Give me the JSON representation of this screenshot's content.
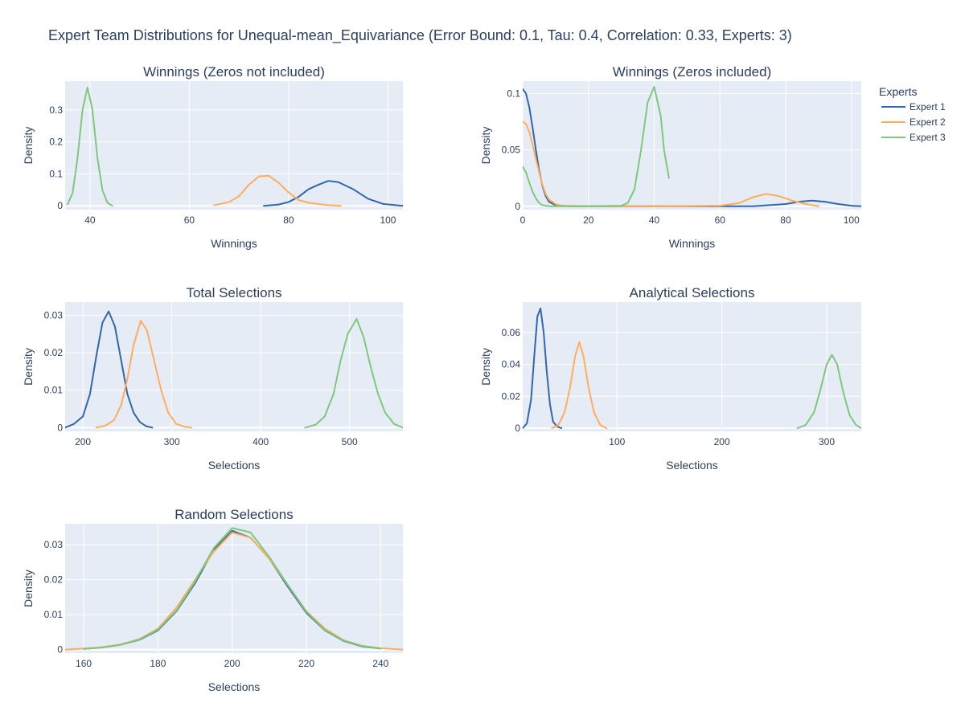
{
  "figure": {
    "title": "Expert Team Distributions for Unequal-mean_Equivariance (Error Bound: 0.1, Tau: 0.4, Correlation: 0.33, Experts: 3)",
    "legend_title": "Experts",
    "series": [
      {
        "name": "Expert 1",
        "color": "#3366aa"
      },
      {
        "name": "Expert 2",
        "color": "#ffad5a"
      },
      {
        "name": "Expert 3",
        "color": "#7ec87e"
      }
    ],
    "plot_bg": "#e5ecf6",
    "grid_color": "#ffffff",
    "text_color": "#2a3f5f"
  },
  "chart_data": [
    {
      "type": "line",
      "title": "Winnings (Zeros not included)",
      "xlabel": "Winnings",
      "ylabel": "Density",
      "xlim": [
        35,
        103
      ],
      "ylim": [
        -0.012,
        0.39
      ],
      "xticks": [
        40,
        60,
        80,
        100
      ],
      "xtick_labels": [
        "40",
        "60",
        "80",
        "100"
      ],
      "yticks": [
        0,
        0.1,
        0.2,
        0.3
      ],
      "ytick_labels": [
        "0",
        "0.1",
        "0.2",
        "0.3"
      ],
      "series": [
        {
          "name": "Expert 1",
          "x": [
            75,
            78,
            80,
            82,
            84,
            86,
            88,
            90,
            93,
            96,
            99,
            103
          ],
          "y": [
            0.0,
            0.004,
            0.012,
            0.028,
            0.052,
            0.066,
            0.078,
            0.074,
            0.052,
            0.022,
            0.006,
            0.0
          ]
        },
        {
          "name": "Expert 2",
          "x": [
            65,
            68,
            70,
            72,
            74,
            76,
            78,
            80,
            82,
            84,
            86,
            88,
            90.5
          ],
          "y": [
            0.002,
            0.012,
            0.03,
            0.066,
            0.092,
            0.094,
            0.072,
            0.042,
            0.018,
            0.01,
            0.006,
            0.002,
            0.0
          ]
        },
        {
          "name": "Expert 3",
          "x": [
            35.5,
            36.5,
            37.5,
            38.5,
            39.5,
            40.5,
            41.5,
            42.5,
            43.5,
            44.5
          ],
          "y": [
            0.005,
            0.04,
            0.15,
            0.3,
            0.37,
            0.3,
            0.15,
            0.05,
            0.01,
            0.0
          ]
        }
      ]
    },
    {
      "type": "line",
      "title": "Winnings (Zeros included)",
      "xlabel": "Winnings",
      "ylabel": "Density",
      "xlim": [
        0,
        103
      ],
      "ylim": [
        -0.003,
        0.111
      ],
      "xticks": [
        0,
        20,
        40,
        60,
        80,
        100
      ],
      "xtick_labels": [
        "0",
        "20",
        "40",
        "60",
        "80",
        "100"
      ],
      "yticks": [
        0,
        0.05,
        0.1
      ],
      "ytick_labels": [
        "0",
        "0.05",
        "0.1"
      ],
      "series": [
        {
          "name": "Expert 1",
          "x": [
            0,
            1,
            2,
            3,
            4,
            5,
            6,
            7,
            8,
            10,
            14,
            20,
            40,
            70,
            80,
            84,
            88,
            92,
            96,
            100,
            103
          ],
          "y": [
            0.104,
            0.1,
            0.088,
            0.07,
            0.05,
            0.032,
            0.018,
            0.009,
            0.004,
            0.001,
            0.0,
            0.0,
            0.0,
            0.0,
            0.002,
            0.004,
            0.005,
            0.004,
            0.002,
            0.0005,
            0.0
          ]
        },
        {
          "name": "Expert 2",
          "x": [
            0,
            1,
            2,
            3,
            4,
            5,
            6,
            7,
            8,
            10,
            12,
            20,
            40,
            60,
            66,
            70,
            74,
            78,
            82,
            86,
            90
          ],
          "y": [
            0.075,
            0.073,
            0.066,
            0.055,
            0.042,
            0.03,
            0.019,
            0.011,
            0.006,
            0.002,
            0.0005,
            0.0,
            0.0,
            0.0005,
            0.003,
            0.008,
            0.011,
            0.009,
            0.005,
            0.002,
            0.0
          ]
        },
        {
          "name": "Expert 3",
          "x": [
            0,
            1,
            2,
            3,
            4,
            5,
            6,
            8,
            10,
            20,
            30,
            32,
            34,
            36,
            38,
            40,
            42,
            43,
            44.5
          ],
          "y": [
            0.035,
            0.03,
            0.021,
            0.013,
            0.007,
            0.003,
            0.001,
            0.0,
            0.0,
            0.0,
            0.0005,
            0.003,
            0.015,
            0.05,
            0.092,
            0.106,
            0.08,
            0.05,
            0.025
          ]
        }
      ]
    },
    {
      "type": "line",
      "title": "Total Selections",
      "xlabel": "Selections",
      "ylabel": "Density",
      "xlim": [
        180,
        560
      ],
      "ylim": [
        -0.001,
        0.0335
      ],
      "xticks": [
        200,
        300,
        400,
        500
      ],
      "xtick_labels": [
        "200",
        "300",
        "400",
        "500"
      ],
      "yticks": [
        0,
        0.01,
        0.02,
        0.03
      ],
      "ytick_labels": [
        "0",
        "0.01",
        "0.02",
        "0.03"
      ],
      "series": [
        {
          "name": "Expert 1",
          "x": [
            180,
            190,
            200,
            208,
            215,
            222,
            229,
            236,
            243,
            250,
            257,
            264,
            271,
            278
          ],
          "y": [
            0.0,
            0.001,
            0.003,
            0.009,
            0.019,
            0.028,
            0.031,
            0.027,
            0.018,
            0.009,
            0.004,
            0.0015,
            0.0004,
            0.0
          ]
        },
        {
          "name": "Expert 2",
          "x": [
            215,
            225,
            235,
            243,
            250,
            257,
            265,
            272,
            280,
            288,
            296,
            305,
            315,
            322
          ],
          "y": [
            0.0,
            0.0005,
            0.002,
            0.006,
            0.013,
            0.022,
            0.0285,
            0.026,
            0.018,
            0.01,
            0.004,
            0.001,
            0.0002,
            0.0
          ]
        },
        {
          "name": "Expert 3",
          "x": [
            450,
            462,
            472,
            482,
            490,
            498,
            508,
            516,
            524,
            532,
            540,
            550,
            560
          ],
          "y": [
            0.0,
            0.0008,
            0.003,
            0.009,
            0.018,
            0.025,
            0.029,
            0.024,
            0.016,
            0.009,
            0.004,
            0.001,
            0.0
          ]
        }
      ]
    },
    {
      "type": "line",
      "title": "Analytical Selections",
      "xlabel": "Selections",
      "ylabel": "Density",
      "xlim": [
        10,
        333
      ],
      "ylim": [
        -0.002,
        0.079
      ],
      "xticks": [
        100,
        200,
        300
      ],
      "xtick_labels": [
        "100",
        "200",
        "300"
      ],
      "yticks": [
        0,
        0.02,
        0.04,
        0.06
      ],
      "ytick_labels": [
        "0",
        "0.02",
        "0.04",
        "0.06"
      ],
      "series": [
        {
          "name": "Expert 1",
          "x": [
            10,
            14,
            18,
            21,
            24,
            27,
            30,
            33,
            36,
            39,
            43,
            47
          ],
          "y": [
            0.0,
            0.003,
            0.018,
            0.045,
            0.07,
            0.075,
            0.06,
            0.035,
            0.015,
            0.004,
            0.001,
            0.0
          ]
        },
        {
          "name": "Expert 2",
          "x": [
            38,
            44,
            50,
            55,
            60,
            64,
            68,
            73,
            78,
            84,
            90
          ],
          "y": [
            0.0,
            0.002,
            0.01,
            0.025,
            0.045,
            0.054,
            0.045,
            0.025,
            0.01,
            0.002,
            0.0
          ]
        },
        {
          "name": "Expert 3",
          "x": [
            272,
            280,
            288,
            294,
            300,
            305,
            310,
            316,
            322,
            328,
            333
          ],
          "y": [
            0.0,
            0.002,
            0.01,
            0.024,
            0.04,
            0.046,
            0.04,
            0.022,
            0.008,
            0.002,
            0.0
          ]
        }
      ]
    },
    {
      "type": "line",
      "title": "Random Selections",
      "xlabel": "Selections",
      "ylabel": "Density",
      "xlim": [
        155,
        246
      ],
      "ylim": [
        -0.001,
        0.036
      ],
      "xticks": [
        160,
        180,
        200,
        220,
        240
      ],
      "xtick_labels": [
        "160",
        "180",
        "200",
        "220",
        "240"
      ],
      "yticks": [
        0,
        0.01,
        0.02,
        0.03
      ],
      "ytick_labels": [
        "0",
        "0.01",
        "0.02",
        "0.03"
      ],
      "series": [
        {
          "name": "Expert 1",
          "x": [
            160,
            165,
            170,
            175,
            180,
            185,
            190,
            195,
            200,
            205,
            210,
            215,
            220,
            225,
            230,
            235,
            240
          ],
          "y": [
            0.0002,
            0.0006,
            0.0014,
            0.0028,
            0.0055,
            0.011,
            0.019,
            0.0285,
            0.034,
            0.032,
            0.026,
            0.018,
            0.0105,
            0.0055,
            0.0025,
            0.0009,
            0.0003
          ]
        },
        {
          "name": "Expert 2",
          "x": [
            155,
            160,
            165,
            170,
            175,
            180,
            185,
            190,
            195,
            200,
            205,
            210,
            215,
            220,
            225,
            230,
            235,
            240,
            246
          ],
          "y": [
            0.0,
            0.0003,
            0.0007,
            0.0015,
            0.003,
            0.006,
            0.012,
            0.02,
            0.028,
            0.0335,
            0.032,
            0.026,
            0.0185,
            0.011,
            0.006,
            0.0027,
            0.0011,
            0.0004,
            0.0
          ]
        },
        {
          "name": "Expert 3",
          "x": [
            160,
            165,
            170,
            175,
            180,
            185,
            190,
            195,
            200,
            205,
            210,
            215,
            220,
            225,
            230,
            235,
            240
          ],
          "y": [
            0.0002,
            0.0006,
            0.0014,
            0.0029,
            0.0057,
            0.0112,
            0.0195,
            0.029,
            0.0348,
            0.0335,
            0.0265,
            0.0185,
            0.0108,
            0.0056,
            0.0026,
            0.001,
            0.0003
          ]
        }
      ]
    }
  ]
}
